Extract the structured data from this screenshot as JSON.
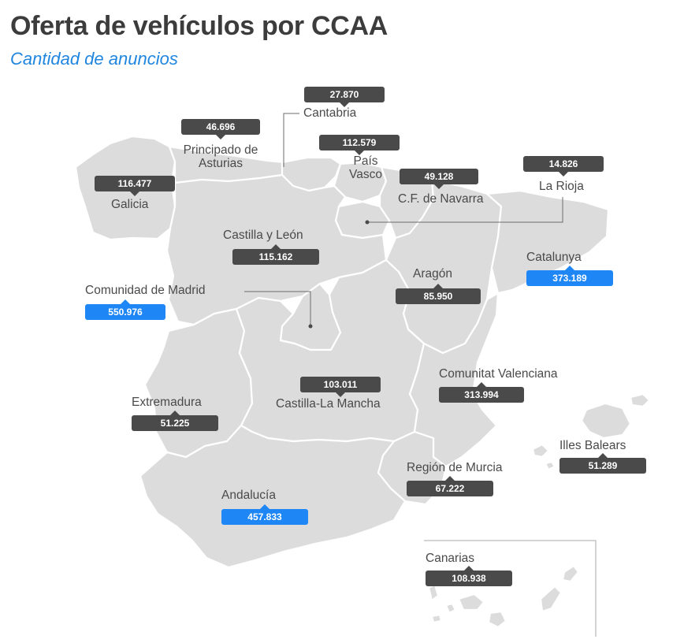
{
  "title": "Oferta de vehículos por CCAA",
  "subtitle": "Cantidad de anuncios",
  "colors": {
    "title": "#3c3c3c",
    "subtitle": "#1f86e0",
    "land": "#dcdcdc",
    "border": "#ffffff",
    "badge": "#4a4a4a",
    "highlight": "#1f86f5",
    "text": "#4a4a4a"
  },
  "regions": {
    "cantabria": {
      "name": "Cantabria",
      "value": "27.870"
    },
    "asturias": {
      "name": "Principado de Asturias",
      "value": "46.696"
    },
    "pais_vasco": {
      "name": "País Vasco",
      "value": "112.579"
    },
    "la_rioja": {
      "name": "La Rioja",
      "value": "14.826"
    },
    "galicia": {
      "name": "Galicia",
      "value": "116.477"
    },
    "navarra": {
      "name": "C.F. de Navarra",
      "value": "49.128"
    },
    "castilla_leon": {
      "name": "Castilla y León",
      "value": "115.162"
    },
    "catalunya": {
      "name": "Catalunya",
      "value": "373.189"
    },
    "aragon": {
      "name": "Aragón",
      "value": "85.950"
    },
    "madrid": {
      "name": "Comunidad de Madrid",
      "value": "550.976"
    },
    "valenciana": {
      "name": "Comunitat Valenciana",
      "value": "313.994"
    },
    "castilla_la_mancha": {
      "name": "Castilla-La Mancha",
      "value": "103.011"
    },
    "extremadura": {
      "name": "Extremadura",
      "value": "51.225"
    },
    "baleares": {
      "name": "Illes Balears",
      "value": "51.289"
    },
    "murcia": {
      "name": "Región de Murcia",
      "value": "67.222"
    },
    "andalucia": {
      "name": "Andalucía",
      "value": "457.833"
    },
    "canarias": {
      "name": "Canarias",
      "value": "108.938"
    }
  }
}
